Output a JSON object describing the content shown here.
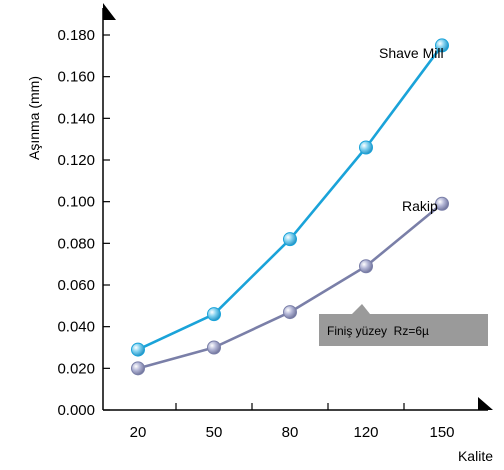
{
  "colors": {
    "shave_mill": "#1aa3d9",
    "rakip": "#7a7fa8",
    "note_box": "#9a9a9a",
    "axis": "#000000"
  },
  "chart_data": {
    "type": "line",
    "categories": [
      "20",
      "50",
      "80",
      "120",
      "150"
    ],
    "xlabel": "Kalite",
    "ylabel": "Aşınma (mm)",
    "ylim": [
      0.0,
      0.2
    ],
    "yticks": [
      "0.000",
      "0.020",
      "0.040",
      "0.060",
      "0.080",
      "0.100",
      "0.120",
      "0.140",
      "0.160",
      "0.180"
    ],
    "grid": false,
    "series": [
      {
        "name": "Shave Mill",
        "values": [
          0.029,
          0.046,
          0.082,
          0.126,
          0.175
        ]
      },
      {
        "name": "Rakip",
        "values": [
          0.02,
          0.03,
          0.047,
          0.069,
          0.099
        ]
      }
    ],
    "annotation": "Finiş yüzey  Rz=6µ"
  }
}
